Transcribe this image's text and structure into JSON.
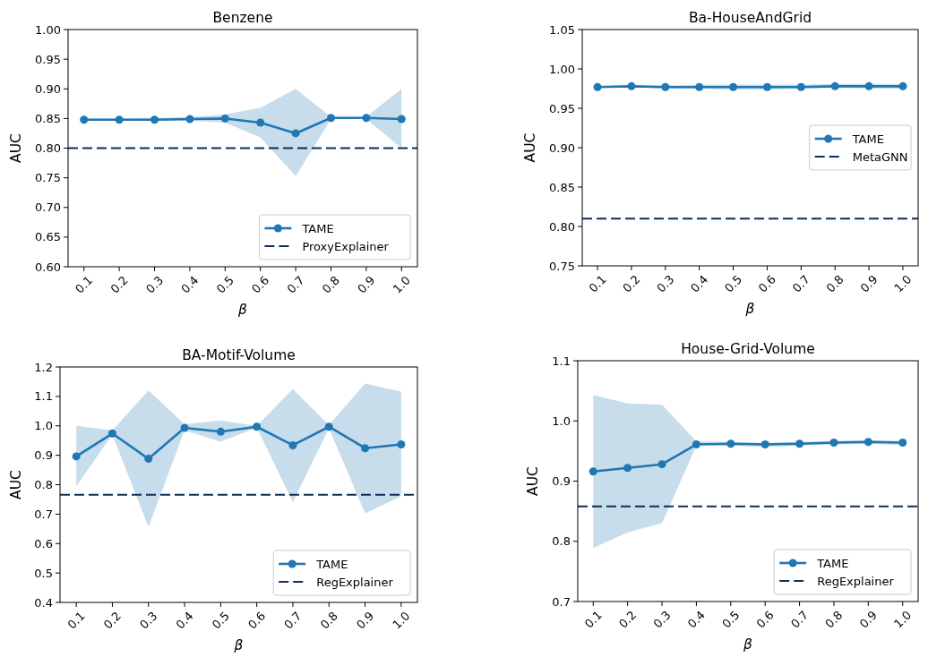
{
  "chart_data": [
    {
      "type": "line",
      "title": "Benzene",
      "xlabel": "β",
      "ylabel": "AUC",
      "categories": [
        "0.1",
        "0.2",
        "0.3",
        "0.4",
        "0.5",
        "0.6",
        "0.7",
        "0.8",
        "0.9",
        "1.0"
      ],
      "series": [
        {
          "name": "TAME",
          "color": "#1f77b4",
          "values": [
            0.848,
            0.848,
            0.848,
            0.849,
            0.85,
            0.843,
            0.825,
            0.851,
            0.851,
            0.849
          ],
          "lower": [
            0.846,
            0.846,
            0.846,
            0.846,
            0.843,
            0.818,
            0.753,
            0.849,
            0.849,
            0.8
          ],
          "upper": [
            0.85,
            0.85,
            0.851,
            0.852,
            0.857,
            0.868,
            0.9,
            0.853,
            0.853,
            0.9
          ]
        }
      ],
      "ylim": [
        0.6,
        1.0
      ],
      "yticks": [
        {
          "value": 0.6,
          "label": "0.60"
        },
        0.65,
        {
          "value": 0.7,
          "label": "0.70"
        },
        0.75,
        {
          "value": 0.8,
          "label": "0.80"
        },
        0.85,
        {
          "value": 0.9,
          "label": "0.90"
        },
        0.95,
        {
          "value": 1.0,
          "label": "1.00"
        }
      ],
      "ref_lines": [
        {
          "axis": "y",
          "value": 0.8,
          "label": "ProxyExplainer",
          "color": "#0b2e59",
          "line_style": "dashed"
        }
      ],
      "legend": "bottom right",
      "marker": "circle"
    },
    {
      "type": "line",
      "title": "Ba-HouseAndGrid",
      "xlabel": "β",
      "ylabel": "AUC",
      "categories": [
        "0.1",
        "0.2",
        "0.3",
        "0.4",
        "0.5",
        "0.6",
        "0.7",
        "0.8",
        "0.9",
        "1.0"
      ],
      "series": [
        {
          "name": "TAME",
          "color": "#1f77b4",
          "values": [
            0.977,
            0.978,
            0.977,
            0.977,
            0.977,
            0.977,
            0.977,
            0.978,
            0.978,
            0.978
          ],
          "lower": [
            0.976,
            0.977,
            0.975,
            0.975,
            0.974,
            0.974,
            0.975,
            0.976,
            0.975,
            0.975
          ],
          "upper": [
            0.978,
            0.979,
            0.979,
            0.98,
            0.98,
            0.98,
            0.98,
            0.981,
            0.981,
            0.981
          ]
        }
      ],
      "ylim": [
        0.75,
        1.05
      ],
      "yticks": [
        0.75,
        {
          "value": 0.8,
          "label": "0.80"
        },
        0.85,
        {
          "value": 0.9,
          "label": "0.90"
        },
        0.95,
        {
          "value": 1.0,
          "label": "1.00"
        },
        1.05
      ],
      "ref_lines": [
        {
          "axis": "y",
          "value": 0.81,
          "label": "MetaGNN",
          "color": "#0b2e59",
          "line_style": "dashed"
        }
      ],
      "legend": "right",
      "marker": "circle"
    },
    {
      "type": "line",
      "title": "BA-Motif-Volume",
      "xlabel": "β",
      "ylabel": "AUC",
      "categories": [
        "0.1",
        "0.2",
        "0.3",
        "0.4",
        "0.5",
        "0.6",
        "0.7",
        "0.8",
        "0.9",
        "1.0"
      ],
      "series": [
        {
          "name": "TAME",
          "color": "#1f77b4",
          "values": [
            0.896,
            0.974,
            0.888,
            0.993,
            0.98,
            0.997,
            0.934,
            0.997,
            0.924,
            0.937
          ],
          "lower": [
            0.795,
            0.97,
            0.656,
            0.985,
            0.946,
            0.994,
            0.741,
            0.992,
            0.703,
            0.761
          ],
          "upper": [
            1.0,
            0.985,
            1.12,
            1.005,
            1.018,
            1.0,
            1.125,
            1.002,
            1.144,
            1.116
          ]
        }
      ],
      "ylim": [
        0.4,
        1.2
      ],
      "yticks": [
        0.4,
        0.5,
        0.6,
        0.7,
        0.8,
        0.9,
        {
          "value": 1.0,
          "label": "1.0"
        },
        1.1,
        1.2
      ],
      "ref_lines": [
        {
          "axis": "y",
          "value": 0.766,
          "label": "RegExplainer",
          "color": "#0b2e59",
          "line_style": "dashed"
        }
      ],
      "legend": "bottom right",
      "marker": "circle"
    },
    {
      "type": "line",
      "title": "House-Grid-Volume",
      "xlabel": "β",
      "ylabel": "AUC",
      "categories": [
        "0.1",
        "0.2",
        "0.3",
        "0.4",
        "0.5",
        "0.6",
        "0.7",
        "0.8",
        "0.9",
        "1.0"
      ],
      "series": [
        {
          "name": "TAME",
          "color": "#1f77b4",
          "values": [
            0.916,
            0.922,
            0.928,
            0.961,
            0.962,
            0.961,
            0.962,
            0.964,
            0.965,
            0.964
          ],
          "lower": [
            0.789,
            0.815,
            0.83,
            0.959,
            0.959,
            0.957,
            0.959,
            0.961,
            0.962,
            0.96
          ],
          "upper": [
            1.043,
            1.029,
            1.027,
            0.966,
            0.965,
            0.964,
            0.965,
            0.967,
            0.968,
            0.967
          ]
        }
      ],
      "ylim": [
        0.7,
        1.1
      ],
      "yticks": [
        0.7,
        0.8,
        0.9,
        {
          "value": 1.0,
          "label": "1.0"
        },
        1.1
      ],
      "ref_lines": [
        {
          "axis": "y",
          "value": 0.858,
          "label": "RegExplainer",
          "color": "#0b2e59",
          "line_style": "dashed"
        }
      ],
      "legend": "bottom right",
      "marker": "circle"
    }
  ]
}
